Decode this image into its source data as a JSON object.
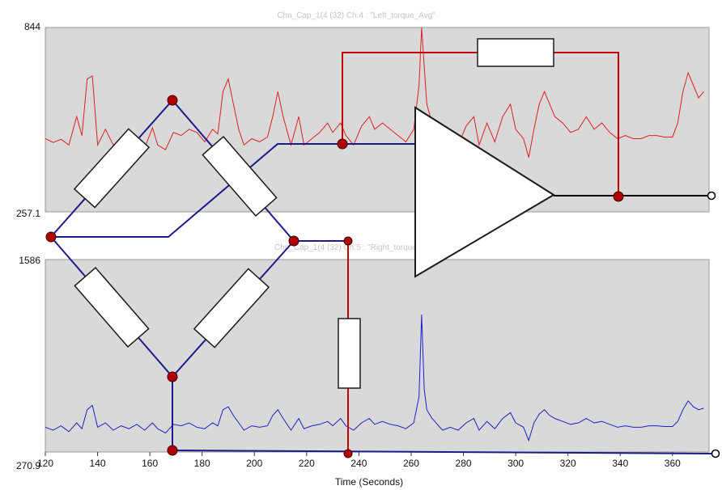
{
  "chart_data": [
    {
      "type": "line",
      "title": "Chn_Cap_1(4 (32) Ch.4 : \"Left_torque_Avg\"",
      "y_top_label": "844",
      "y_bottom_label": "257.1",
      "ylim": [
        257.1,
        844
      ],
      "xlim": [
        120,
        374
      ],
      "grid": false,
      "series": [
        {
          "color": "#e02020",
          "points": [
            [
              120,
              490
            ],
            [
              123,
              478
            ],
            [
              126,
              488
            ],
            [
              129,
              470
            ],
            [
              132,
              560
            ],
            [
              134,
              500
            ],
            [
              136,
              680
            ],
            [
              138,
              690
            ],
            [
              140,
              470
            ],
            [
              143,
              520
            ],
            [
              146,
              470
            ],
            [
              149,
              485
            ],
            [
              152,
              470
            ],
            [
              155,
              480
            ],
            [
              158,
              460
            ],
            [
              161,
              525
            ],
            [
              163,
              470
            ],
            [
              166,
              455
            ],
            [
              169,
              510
            ],
            [
              172,
              500
            ],
            [
              175,
              520
            ],
            [
              178,
              510
            ],
            [
              181,
              480
            ],
            [
              184,
              520
            ],
            [
              186,
              505
            ],
            [
              188,
              640
            ],
            [
              190,
              680
            ],
            [
              192,
              600
            ],
            [
              194,
              520
            ],
            [
              196,
              470
            ],
            [
              199,
              490
            ],
            [
              202,
              480
            ],
            [
              205,
              495
            ],
            [
              207,
              560
            ],
            [
              209,
              640
            ],
            [
              211,
              560
            ],
            [
              214,
              470
            ],
            [
              217,
              560
            ],
            [
              219,
              470
            ],
            [
              222,
              490
            ],
            [
              225,
              510
            ],
            [
              228,
              540
            ],
            [
              230,
              510
            ],
            [
              233,
              540
            ],
            [
              235,
              500
            ],
            [
              238,
              470
            ],
            [
              241,
              530
            ],
            [
              244,
              560
            ],
            [
              246,
              520
            ],
            [
              249,
              540
            ],
            [
              252,
              520
            ],
            [
              255,
              500
            ],
            [
              258,
              480
            ],
            [
              261,
              520
            ],
            [
              263,
              660
            ],
            [
              264,
              844
            ],
            [
              265,
              720
            ],
            [
              266,
              600
            ],
            [
              268,
              540
            ],
            [
              270,
              520
            ],
            [
              272,
              470
            ],
            [
              275,
              490
            ],
            [
              278,
              470
            ],
            [
              281,
              530
            ],
            [
              284,
              560
            ],
            [
              286,
              470
            ],
            [
              289,
              540
            ],
            [
              292,
              480
            ],
            [
              295,
              560
            ],
            [
              298,
              600
            ],
            [
              300,
              520
            ],
            [
              303,
              490
            ],
            [
              305,
              430
            ],
            [
              307,
              520
            ],
            [
              309,
              600
            ],
            [
              311,
              640
            ],
            [
              313,
              600
            ],
            [
              315,
              560
            ],
            [
              318,
              540
            ],
            [
              321,
              510
            ],
            [
              324,
              520
            ],
            [
              327,
              560
            ],
            [
              330,
              520
            ],
            [
              333,
              540
            ],
            [
              336,
              510
            ],
            [
              339,
              490
            ],
            [
              342,
              500
            ],
            [
              345,
              490
            ],
            [
              348,
              490
            ],
            [
              351,
              500
            ],
            [
              354,
              500
            ],
            [
              357,
              495
            ],
            [
              360,
              495
            ],
            [
              362,
              540
            ],
            [
              364,
              640
            ],
            [
              366,
              700
            ],
            [
              368,
              660
            ],
            [
              370,
              620
            ],
            [
              372,
              640
            ]
          ]
        }
      ]
    },
    {
      "type": "line",
      "title": "Chn_Cap_1(4 (32) Ch.5 : \"Right_torque_Avg\"",
      "y_top_label": "1586",
      "y_bottom_label": "270.9",
      "ylim": [
        270.9,
        1586
      ],
      "xlim": [
        120,
        374
      ],
      "grid": false,
      "series": [
        {
          "color": "#2020c8",
          "points": [
            [
              120,
              440
            ],
            [
              123,
              420
            ],
            [
              126,
              450
            ],
            [
              129,
              410
            ],
            [
              132,
              470
            ],
            [
              134,
              430
            ],
            [
              136,
              560
            ],
            [
              138,
              590
            ],
            [
              140,
              440
            ],
            [
              143,
              470
            ],
            [
              146,
              420
            ],
            [
              149,
              450
            ],
            [
              152,
              430
            ],
            [
              155,
              460
            ],
            [
              158,
              420
            ],
            [
              161,
              470
            ],
            [
              163,
              430
            ],
            [
              166,
              400
            ],
            [
              169,
              460
            ],
            [
              172,
              450
            ],
            [
              175,
              470
            ],
            [
              178,
              440
            ],
            [
              181,
              430
            ],
            [
              184,
              470
            ],
            [
              186,
              450
            ],
            [
              188,
              560
            ],
            [
              190,
              580
            ],
            [
              192,
              520
            ],
            [
              194,
              470
            ],
            [
              196,
              420
            ],
            [
              199,
              450
            ],
            [
              202,
              440
            ],
            [
              205,
              450
            ],
            [
              207,
              520
            ],
            [
              209,
              560
            ],
            [
              211,
              500
            ],
            [
              214,
              420
            ],
            [
              217,
              500
            ],
            [
              219,
              430
            ],
            [
              222,
              450
            ],
            [
              225,
              460
            ],
            [
              228,
              480
            ],
            [
              230,
              450
            ],
            [
              233,
              500
            ],
            [
              235,
              450
            ],
            [
              238,
              420
            ],
            [
              241,
              470
            ],
            [
              244,
              500
            ],
            [
              246,
              460
            ],
            [
              249,
              480
            ],
            [
              252,
              460
            ],
            [
              255,
              450
            ],
            [
              258,
              430
            ],
            [
              261,
              470
            ],
            [
              263,
              650
            ],
            [
              264,
              1210
            ],
            [
              265,
              700
            ],
            [
              266,
              560
            ],
            [
              268,
              500
            ],
            [
              270,
              460
            ],
            [
              272,
              420
            ],
            [
              275,
              440
            ],
            [
              278,
              420
            ],
            [
              281,
              470
            ],
            [
              284,
              500
            ],
            [
              286,
              420
            ],
            [
              289,
              480
            ],
            [
              292,
              430
            ],
            [
              295,
              500
            ],
            [
              298,
              540
            ],
            [
              300,
              470
            ],
            [
              303,
              440
            ],
            [
              305,
              350
            ],
            [
              307,
              470
            ],
            [
              309,
              530
            ],
            [
              311,
              560
            ],
            [
              313,
              520
            ],
            [
              315,
              500
            ],
            [
              318,
              480
            ],
            [
              321,
              460
            ],
            [
              324,
              470
            ],
            [
              327,
              500
            ],
            [
              330,
              470
            ],
            [
              333,
              480
            ],
            [
              336,
              460
            ],
            [
              339,
              440
            ],
            [
              342,
              450
            ],
            [
              345,
              440
            ],
            [
              348,
              440
            ],
            [
              351,
              450
            ],
            [
              354,
              450
            ],
            [
              357,
              445
            ],
            [
              360,
              445
            ],
            [
              362,
              480
            ],
            [
              364,
              560
            ],
            [
              366,
              620
            ],
            [
              368,
              580
            ],
            [
              370,
              560
            ],
            [
              372,
              570
            ]
          ]
        }
      ]
    }
  ],
  "x_axis": {
    "label": "Time (Seconds)",
    "ticks": [
      "120",
      "140",
      "160",
      "180",
      "200",
      "220",
      "240",
      "260",
      "280",
      "300",
      "320",
      "340",
      "360"
    ]
  },
  "overlay_colors": {
    "bridge": "#1a1a8c",
    "feedback": "#c00000",
    "output": "#000000",
    "node": "#b00000"
  }
}
